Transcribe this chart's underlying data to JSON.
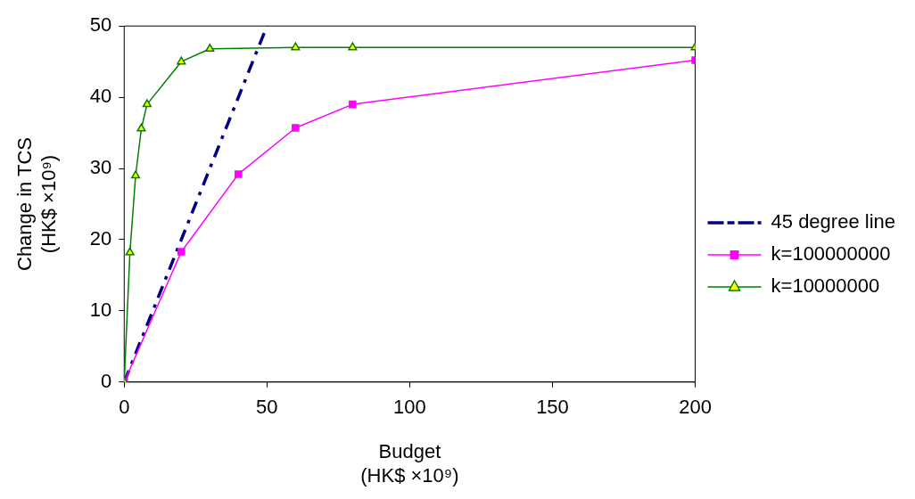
{
  "chart_data": {
    "type": "line",
    "xlabel": "Budget\n(HK$ ×10⁹)",
    "ylabel": "Change in TCS\n(HK$ ×10⁹)",
    "xlim": [
      0,
      200
    ],
    "xticks": [
      0,
      50,
      100,
      150,
      200
    ],
    "ylim": [
      0,
      50
    ],
    "yticks": [
      0,
      10,
      20,
      30,
      40,
      50
    ],
    "grid": false,
    "legend": "right",
    "series": [
      {
        "name": "45 degree line",
        "color": "#000080",
        "x": [
          0,
          10,
          20,
          30,
          40,
          50
        ],
        "values": [
          0,
          10,
          20,
          30,
          40,
          50
        ],
        "marker": "none",
        "line_style": "dashed"
      },
      {
        "name": "k=100000000",
        "color": "#ff00ff",
        "x": [
          0,
          20,
          40,
          60,
          80,
          200
        ],
        "values": [
          0,
          18.3,
          29.2,
          35.7,
          39,
          45.2
        ],
        "marker": "square",
        "line_style": "solid"
      },
      {
        "name": "k=10000000",
        "color": "#008000",
        "x": [
          0,
          2,
          4,
          6,
          8,
          20,
          30,
          60,
          80,
          200
        ],
        "values": [
          0,
          18.2,
          29,
          35.6,
          39,
          45,
          46.8,
          47,
          47,
          47
        ],
        "marker": "triangle",
        "line_style": "solid"
      }
    ]
  }
}
